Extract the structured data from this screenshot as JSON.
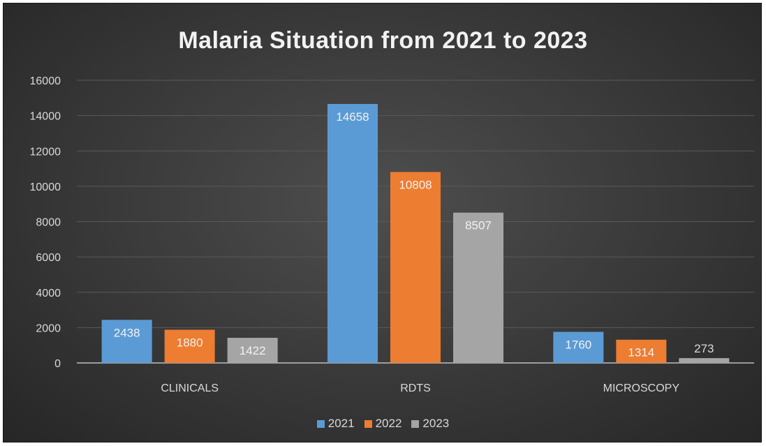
{
  "chart_data": {
    "type": "bar",
    "title": "Malaria Situation from 2021 to 2023",
    "categories": [
      "CLINICALS",
      "RDTS",
      "MICROSCOPY"
    ],
    "series": [
      {
        "name": "2021",
        "values": [
          2438,
          14658,
          1760
        ],
        "color": "#5b9bd5"
      },
      {
        "name": "2022",
        "values": [
          1880,
          10808,
          1314
        ],
        "color": "#ed7d31"
      },
      {
        "name": "2023",
        "values": [
          1422,
          8507,
          273
        ],
        "color": "#a5a5a5"
      }
    ],
    "ylim": [
      0,
      16000
    ],
    "yticks": [
      0,
      2000,
      4000,
      6000,
      8000,
      10000,
      12000,
      14000,
      16000
    ],
    "grid": true,
    "legend_position": "bottom",
    "data_labels": true
  }
}
